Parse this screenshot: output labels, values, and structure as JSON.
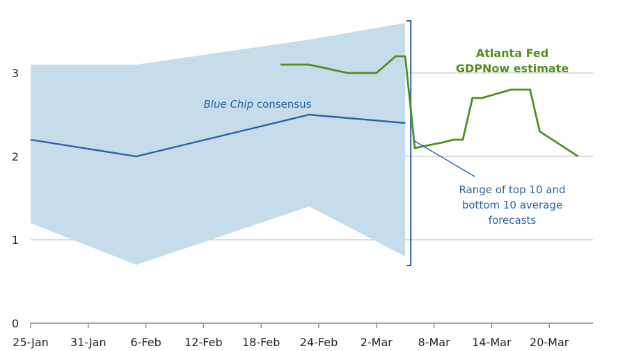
{
  "chart_data": {
    "type": "line",
    "title": "",
    "xlabel": "",
    "ylabel": "",
    "ylim": [
      0,
      3.6
    ],
    "grid": "horizontal",
    "x_ticks": [
      "25-Jan",
      "31-Jan",
      "6-Feb",
      "12-Feb",
      "18-Feb",
      "24-Feb",
      "2-Mar",
      "8-Mar",
      "14-Mar",
      "20-Mar"
    ],
    "y_ticks": [
      "0",
      "1",
      "2",
      "3"
    ],
    "series": [
      {
        "name": "Blue Chip consensus",
        "color": "#2b62a3",
        "points": [
          {
            "x": "25-Jan",
            "y": 2.2
          },
          {
            "x": "5-Feb",
            "y": 2.0
          },
          {
            "x": "23-Feb",
            "y": 2.5
          },
          {
            "x": "5-Mar",
            "y": 2.4
          }
        ]
      },
      {
        "name": "Atlanta Fed GDPNow estimate",
        "color": "#4e8f1e",
        "points": [
          {
            "x": "20-Feb",
            "y": 3.1
          },
          {
            "x": "23-Feb",
            "y": 3.1
          },
          {
            "x": "27-Feb",
            "y": 3.0
          },
          {
            "x": "2-Mar",
            "y": 3.0
          },
          {
            "x": "4-Mar",
            "y": 3.2
          },
          {
            "x": "5-Mar",
            "y": 3.2
          },
          {
            "x": "6-Mar",
            "y": 2.1
          },
          {
            "x": "9-Mar",
            "y": 2.17
          },
          {
            "x": "10-Mar",
            "y": 2.2
          },
          {
            "x": "11-Mar",
            "y": 2.2
          },
          {
            "x": "12-Mar",
            "y": 2.7
          },
          {
            "x": "13-Mar",
            "y": 2.7
          },
          {
            "x": "16-Mar",
            "y": 2.8
          },
          {
            "x": "18-Mar",
            "y": 2.8
          },
          {
            "x": "19-Mar",
            "y": 2.3
          },
          {
            "x": "23-Mar",
            "y": 2.0
          }
        ]
      }
    ],
    "range_band": {
      "name": "Range of top 10 and bottom 10 average forecasts",
      "color": "#c5dcea",
      "upper": [
        {
          "x": "25-Jan",
          "y": 3.1
        },
        {
          "x": "5-Feb",
          "y": 3.1
        },
        {
          "x": "23-Feb",
          "y": 3.4
        },
        {
          "x": "5-Mar",
          "y": 3.6
        }
      ],
      "lower": [
        {
          "x": "25-Jan",
          "y": 1.2
        },
        {
          "x": "5-Feb",
          "y": 0.7
        },
        {
          "x": "23-Feb",
          "y": 1.4
        },
        {
          "x": "5-Mar",
          "y": 0.8
        }
      ]
    },
    "annotations": {
      "blue_chip_italic": "Blue Chip",
      "blue_chip_rest": " consensus",
      "gdpnow_line1": "Atlanta Fed",
      "gdpnow_line2": "GDPNow estimate",
      "range_line1": "Range of top 10 and",
      "range_line2": "bottom 10 average",
      "range_line3": "forecasts"
    }
  }
}
